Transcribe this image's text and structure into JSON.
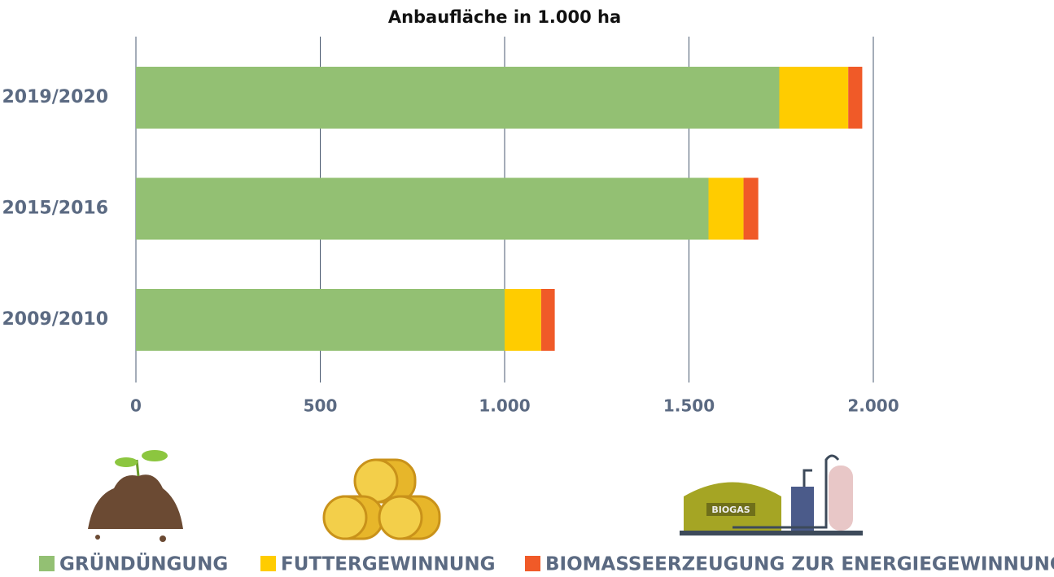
{
  "chart_data": {
    "type": "stacked-bar-horizontal",
    "title": "Anbaufläche in 1.000 ha",
    "categories": [
      "2019/2020",
      "2015/2016",
      "2009/2010"
    ],
    "series": [
      {
        "name": "GRÜNDÜNGUNG",
        "color": "#93c073",
        "values": [
          1745,
          1553,
          1000
        ]
      },
      {
        "name": "FUTTERGEWINNUNG",
        "color": "#ffcc00",
        "values": [
          187,
          95,
          99
        ]
      },
      {
        "name": "BIOMASSEERZEUGUNG ZUR ENERGIEGEWINNUNG",
        "color": "#f05a28",
        "values": [
          38,
          40,
          37
        ]
      }
    ],
    "xlim": [
      0,
      2000
    ],
    "xticks": [
      0,
      500,
      {
        "value": 1000,
        "label": "1.000"
      },
      {
        "value": 1500,
        "label": "1.500"
      },
      {
        "value": 2000,
        "label": "2.000"
      }
    ],
    "grid": true,
    "annotations": [
      "BIOGAS"
    ]
  }
}
